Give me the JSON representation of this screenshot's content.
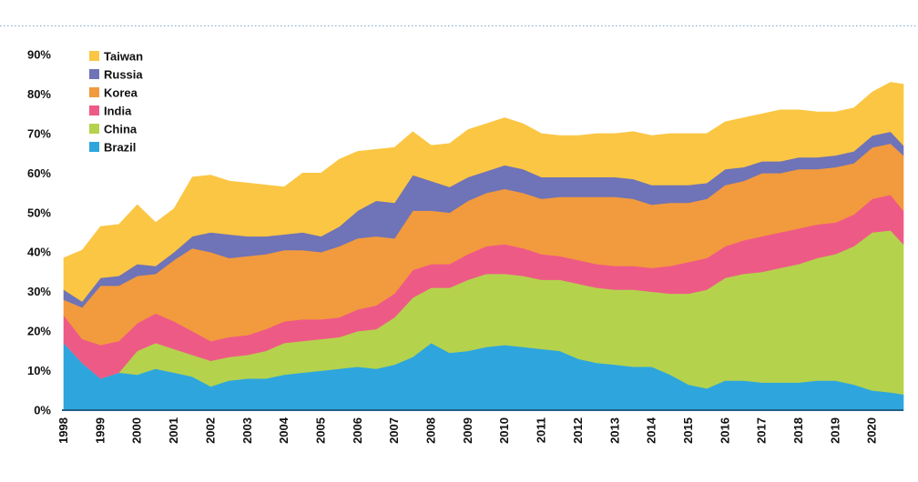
{
  "chart_data": {
    "type": "area",
    "stacked": true,
    "title": "",
    "xlabel": "",
    "ylabel": "",
    "ylim": [
      0,
      90
    ],
    "y_ticks": [
      0,
      10,
      20,
      30,
      40,
      50,
      60,
      70,
      80,
      90
    ],
    "y_tick_labels": [
      "0%",
      "10%",
      "20%",
      "30%",
      "40%",
      "50%",
      "60%",
      "70%",
      "80%",
      "90%"
    ],
    "xlim": [
      1998.0,
      2020.85
    ],
    "x_ticks": [
      1998,
      1999,
      2000,
      2001,
      2002,
      2003,
      2004,
      2005,
      2006,
      2007,
      2008,
      2009,
      2010,
      2011,
      2012,
      2013,
      2014,
      2015,
      2016,
      2017,
      2018,
      2019,
      2020
    ],
    "x_tick_labels": [
      "1998",
      "1999",
      "2000",
      "2001",
      "2002",
      "2003",
      "2004",
      "2005",
      "2006",
      "2007",
      "2008",
      "2009",
      "2010",
      "2011",
      "2012",
      "2013",
      "2014",
      "2015",
      "2016",
      "2017",
      "2018",
      "2019",
      "2020"
    ],
    "legend_position": "top-left",
    "x": [
      1998.0,
      1998.5,
      1999.0,
      1999.5,
      2000.0,
      2000.5,
      2001.0,
      2001.5,
      2002.0,
      2002.5,
      2003.0,
      2003.5,
      2004.0,
      2004.5,
      2005.0,
      2005.5,
      2006.0,
      2006.5,
      2007.0,
      2007.5,
      2008.0,
      2008.5,
      2009.0,
      2009.5,
      2010.0,
      2010.5,
      2011.0,
      2011.5,
      2012.0,
      2012.5,
      2013.0,
      2013.5,
      2014.0,
      2014.5,
      2015.0,
      2015.5,
      2016.0,
      2016.5,
      2017.0,
      2017.5,
      2018.0,
      2018.5,
      2019.0,
      2019.5,
      2020.0,
      2020.5,
      2020.85
    ],
    "series": [
      {
        "name": "Brazil",
        "color": "#2ea6dd",
        "values": [
          17,
          12,
          8,
          9.5,
          9,
          10.5,
          9.5,
          8.5,
          6,
          7.5,
          8,
          8,
          9,
          9.5,
          10,
          10.5,
          11,
          10.5,
          11.5,
          13.5,
          17,
          14.5,
          15,
          16,
          16.5,
          16,
          15.5,
          15,
          13,
          12,
          11.5,
          11,
          11,
          9,
          6.5,
          5.5,
          7.5,
          7.5,
          7,
          7,
          7,
          7.5,
          7.5,
          6.5,
          5,
          4.5,
          4
        ]
      },
      {
        "name": "China",
        "color": "#b5d24d",
        "values": [
          0,
          0,
          0,
          0,
          6,
          6.5,
          6,
          5.5,
          6.5,
          6,
          6,
          7,
          8,
          8,
          8,
          8,
          9,
          10,
          12,
          15,
          14,
          16.5,
          18,
          18.5,
          18,
          18,
          17.5,
          18,
          19,
          19,
          19,
          19.5,
          19,
          20.5,
          23,
          25,
          26,
          27,
          28,
          29,
          30,
          31,
          32,
          35,
          40,
          41,
          38
        ]
      },
      {
        "name": "India",
        "color": "#ee5a86",
        "values": [
          7,
          6,
          8.5,
          8,
          7,
          7.5,
          7,
          6,
          5,
          5,
          5,
          5.5,
          5.5,
          5.5,
          5,
          5,
          5.5,
          6,
          6,
          7,
          6,
          6,
          6.5,
          7,
          7.5,
          7,
          6.5,
          6,
          6,
          6,
          6,
          6,
          6,
          7,
          8,
          8,
          8,
          8.5,
          9,
          9,
          9,
          8.5,
          8,
          8,
          8.5,
          9,
          8.5
        ]
      },
      {
        "name": "Korea",
        "color": "#f29a3e",
        "values": [
          4,
          8,
          15,
          14,
          12,
          10,
          15.5,
          21,
          22.5,
          20,
          20,
          19,
          18,
          17.5,
          17,
          18,
          18,
          17.5,
          14,
          15,
          13.5,
          13,
          13.5,
          13.5,
          14,
          14,
          14,
          15,
          16,
          17,
          17.5,
          17,
          16,
          16,
          15,
          15,
          15.5,
          15,
          16,
          15,
          15,
          14,
          14,
          13,
          13,
          13,
          14
        ]
      },
      {
        "name": "Russia",
        "color": "#6f73b7",
        "values": [
          2.5,
          1.5,
          2,
          2.5,
          3,
          2,
          2,
          3,
          5,
          6,
          5,
          4.5,
          4,
          4.5,
          4,
          5,
          7,
          9,
          9,
          9,
          7.5,
          6.5,
          6,
          5.5,
          6,
          6,
          5.5,
          5,
          5,
          5,
          5,
          5,
          5,
          4.5,
          4.5,
          4,
          4,
          3.5,
          3,
          3,
          3,
          3,
          3,
          3,
          3,
          3,
          2.5
        ]
      },
      {
        "name": "Taiwan",
        "color": "#fbc643",
        "values": [
          8,
          13,
          13,
          13,
          15,
          11,
          11,
          15,
          14.5,
          13.5,
          13.5,
          13,
          12,
          15,
          16,
          17,
          15,
          13,
          14,
          11,
          9,
          11,
          12,
          12,
          12,
          11.5,
          11,
          10.5,
          10.5,
          11,
          11,
          12,
          12.5,
          13,
          13,
          12.5,
          12,
          12.5,
          12,
          13,
          12,
          11.5,
          11,
          11,
          11,
          12.5,
          15.5
        ]
      }
    ],
    "legend_order": [
      "Taiwan",
      "Russia",
      "Korea",
      "India",
      "China",
      "Brazil"
    ]
  }
}
